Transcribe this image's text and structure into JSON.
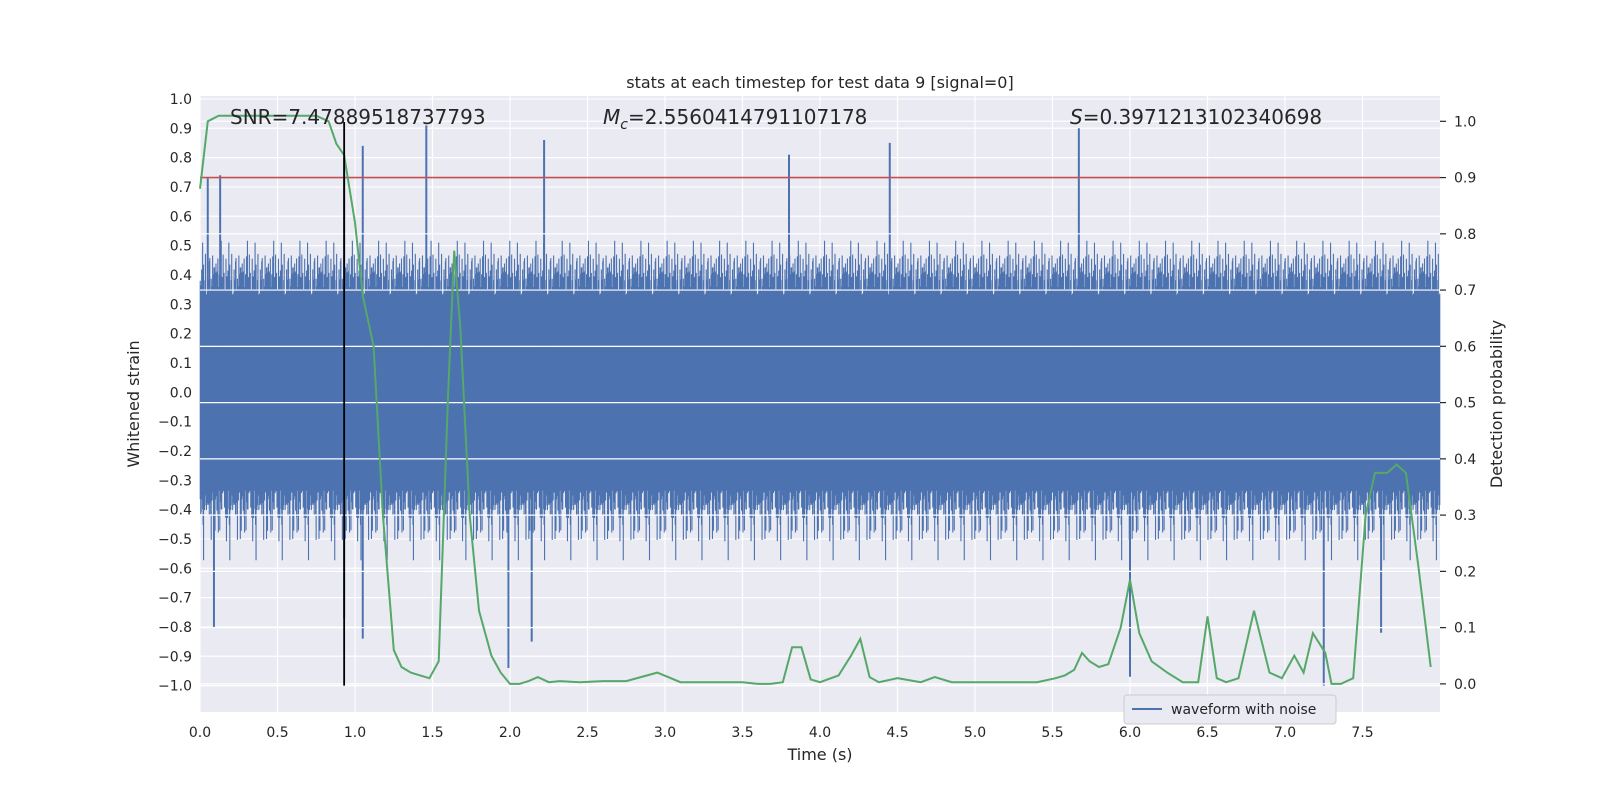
{
  "chart_data": {
    "type": "line",
    "title": "stats at each timestep for test data 9 [signal=0]",
    "xlabel": "Time (s)",
    "ylabel_left": "Whitened strain",
    "ylabel_right": "Detection probability",
    "xlim": [
      0.0,
      8.0
    ],
    "ylim_left": [
      -1.09,
      1.01
    ],
    "ylim_right": [
      -0.05,
      1.045
    ],
    "x_ticks": [
      0.0,
      0.5,
      1.0,
      1.5,
      2.0,
      2.5,
      3.0,
      3.5,
      4.0,
      4.5,
      5.0,
      5.5,
      6.0,
      6.5,
      7.0,
      7.5
    ],
    "x_tick_labels": [
      "0.0",
      "0.5",
      "1.0",
      "1.5",
      "2.0",
      "2.5",
      "3.0",
      "3.5",
      "4.0",
      "4.5",
      "5.0",
      "5.5",
      "6.0",
      "6.5",
      "7.0",
      "7.5"
    ],
    "y_left_ticks": [
      1.0,
      0.9,
      0.8,
      0.7,
      0.6,
      0.5,
      0.4,
      0.3,
      0.2,
      0.1,
      0.0,
      -0.1,
      -0.2,
      -0.3,
      -0.4,
      -0.5,
      -0.6,
      -0.7,
      -0.8,
      -0.9,
      -1.0
    ],
    "y_left_tick_labels": [
      "1.0",
      "0.9",
      "0.8",
      "0.7",
      "0.6",
      "0.5",
      "0.4",
      "0.3",
      "0.2",
      "0.1",
      "0.0",
      "−0.1",
      "−0.2",
      "−0.3",
      "−0.4",
      "−0.5",
      "−0.6",
      "−0.7",
      "−0.8",
      "−0.9",
      "−1.0"
    ],
    "y_right_ticks": [
      1.0,
      0.9,
      0.8,
      0.7,
      0.6,
      0.5,
      0.4,
      0.3,
      0.2,
      0.1,
      0.0
    ],
    "y_right_tick_labels": [
      "1.0",
      "0.9",
      "0.8",
      "0.7",
      "0.6",
      "0.5",
      "0.4",
      "0.3",
      "0.2",
      "0.1",
      "0.0"
    ],
    "grid": true,
    "annotations": [
      {
        "prefix": "SNR",
        "value": "=7.47889518737793"
      },
      {
        "prefix": "M",
        "subscript": "c",
        "value": "=2.5560414791107178"
      },
      {
        "prefix": "S",
        "value": "=0.3971213102340698"
      }
    ],
    "vertical_line_x": 0.93,
    "threshold_probability": 0.9,
    "legend": {
      "label": "waveform with noise",
      "placement": "lower-right"
    },
    "series": [
      {
        "name": "waveform with noise",
        "axis": "left",
        "color": "#4c72b0",
        "style": "dense noise, core band about ±0.3, peaks to about ±0.9",
        "peaks": [
          {
            "x": 0.05,
            "y": 0.73
          },
          {
            "x": 0.09,
            "y": -0.8
          },
          {
            "x": 0.13,
            "y": 0.74
          },
          {
            "x": 0.93,
            "y": 0.8
          },
          {
            "x": 0.93,
            "y": -0.77
          },
          {
            "x": 1.05,
            "y": 0.84
          },
          {
            "x": 1.05,
            "y": -0.84
          },
          {
            "x": 1.46,
            "y": 0.91
          },
          {
            "x": 1.99,
            "y": -0.94
          },
          {
            "x": 2.14,
            "y": -0.85
          },
          {
            "x": 2.22,
            "y": 0.86
          },
          {
            "x": 3.8,
            "y": 0.81
          },
          {
            "x": 4.45,
            "y": 0.85
          },
          {
            "x": 5.67,
            "y": 0.9
          },
          {
            "x": 6.0,
            "y": -0.97
          },
          {
            "x": 7.25,
            "y": -1.0
          },
          {
            "x": 7.62,
            "y": -0.82
          }
        ]
      },
      {
        "name": "",
        "axis": "right",
        "color": "#55a868",
        "x": [
          0.0,
          0.05,
          0.12,
          0.25,
          0.5,
          0.75,
          0.83,
          0.88,
          0.93,
          1.0,
          1.05,
          1.12,
          1.18,
          1.25,
          1.3,
          1.36,
          1.42,
          1.48,
          1.54,
          1.6,
          1.64,
          1.68,
          1.74,
          1.8,
          1.88,
          1.94,
          2.0,
          2.06,
          2.12,
          2.18,
          2.25,
          2.32,
          2.45,
          2.6,
          2.75,
          2.95,
          3.1,
          3.3,
          3.5,
          3.6,
          3.68,
          3.76,
          3.82,
          3.88,
          3.94,
          4.0,
          4.12,
          4.2,
          4.26,
          4.32,
          4.38,
          4.5,
          4.65,
          4.74,
          4.85,
          5.0,
          5.2,
          5.4,
          5.52,
          5.58,
          5.64,
          5.69,
          5.74,
          5.8,
          5.86,
          5.94,
          6.0,
          6.06,
          6.14,
          6.24,
          6.34,
          6.44,
          6.5,
          6.56,
          6.62,
          6.7,
          6.8,
          6.9,
          6.98,
          7.06,
          7.12,
          7.18,
          7.26,
          7.3,
          7.36,
          7.44,
          7.52,
          7.58,
          7.66,
          7.72,
          7.78,
          7.86,
          7.94
        ],
        "y": [
          0.88,
          1.0,
          1.01,
          1.01,
          1.01,
          1.01,
          1.0,
          0.96,
          0.94,
          0.82,
          0.69,
          0.6,
          0.3,
          0.06,
          0.03,
          0.02,
          0.015,
          0.01,
          0.04,
          0.51,
          0.77,
          0.63,
          0.3,
          0.13,
          0.05,
          0.02,
          0.0,
          0.0,
          0.005,
          0.012,
          0.003,
          0.005,
          0.003,
          0.005,
          0.005,
          0.02,
          0.003,
          0.003,
          0.003,
          0.0,
          0.0,
          0.003,
          0.065,
          0.065,
          0.008,
          0.003,
          0.015,
          0.05,
          0.08,
          0.012,
          0.003,
          0.01,
          0.003,
          0.012,
          0.003,
          0.003,
          0.003,
          0.003,
          0.01,
          0.015,
          0.025,
          0.055,
          0.04,
          0.03,
          0.035,
          0.1,
          0.185,
          0.09,
          0.04,
          0.02,
          0.003,
          0.003,
          0.12,
          0.01,
          0.003,
          0.01,
          0.13,
          0.02,
          0.01,
          0.05,
          0.02,
          0.09,
          0.055,
          0.0,
          0.0,
          0.01,
          0.3,
          0.375,
          0.375,
          0.39,
          0.375,
          0.21,
          0.03
        ]
      },
      {
        "name": "",
        "axis": "right",
        "color": "#c44e52",
        "style": "horizontal line at detection threshold 0.9"
      }
    ]
  }
}
